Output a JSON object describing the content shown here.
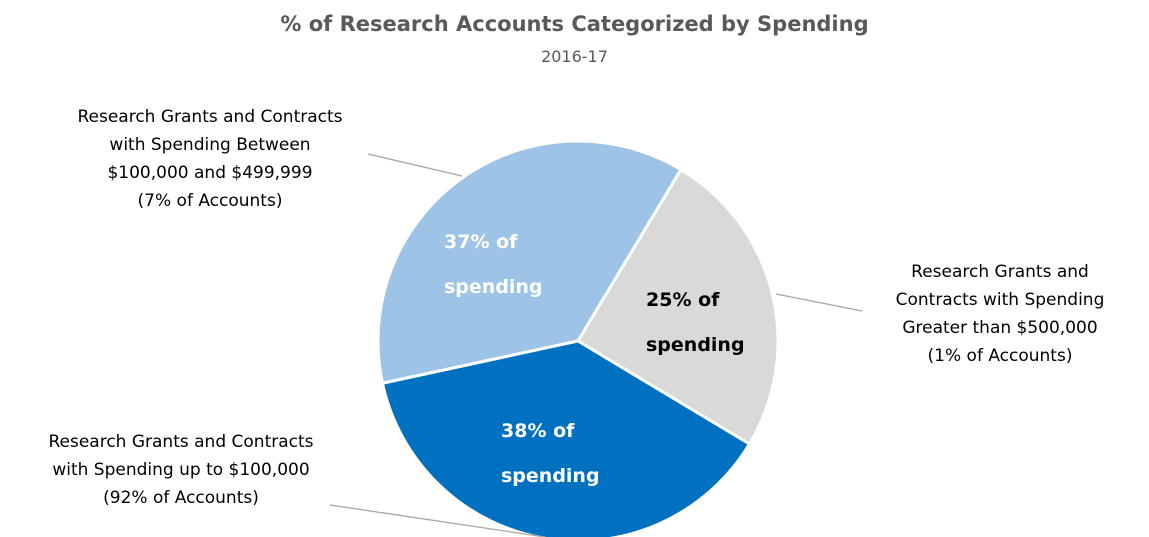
{
  "chart_data": {
    "type": "pie",
    "title": "% of Research Accounts Categorized by Spending",
    "subtitle": "2016-17",
    "categories": [
      "Research Grants and Contracts\nwith Spending Between\n$100,000 and $499,999\n(7% of Accounts)",
      "Research Grants and\nContracts with Spending\nGreater than $500,000\n(1% of Accounts)",
      "Research Grants and Contracts\nwith Spending up to $100,000\n(92% of Accounts)"
    ],
    "values": [
      37,
      25,
      38
    ],
    "value_labels": [
      "37% of\nspending",
      "25% of\nspending",
      "38% of\nspending"
    ],
    "colors": [
      "#9dc3e6",
      "#d9d9d9",
      "#0070c0"
    ],
    "label_colors": [
      "#ffffff",
      "#000000",
      "#ffffff"
    ]
  }
}
